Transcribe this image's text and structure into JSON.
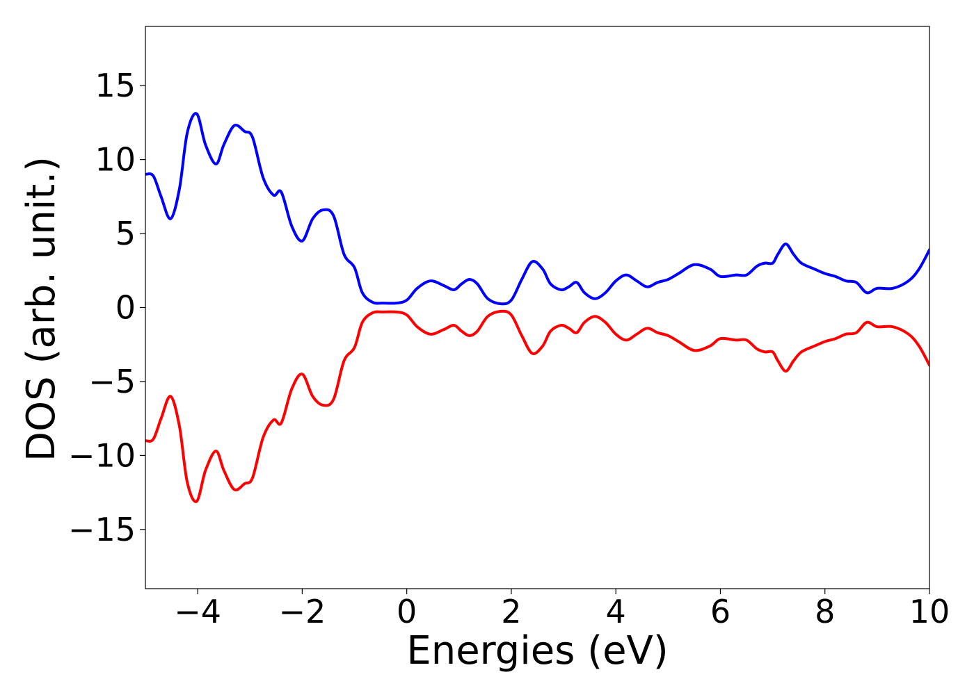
{
  "chart_data": {
    "type": "line",
    "title": "",
    "xlabel": "Energies (eV)",
    "ylabel": "DOS (arb. unit.)",
    "xlim": [
      -5,
      10
    ],
    "ylim": [
      -19,
      19
    ],
    "xticks": [
      -4,
      -2,
      0,
      2,
      4,
      6,
      8,
      10
    ],
    "xtick_labels": [
      "−4",
      "−2",
      "0",
      "2",
      "4",
      "6",
      "8",
      "10"
    ],
    "yticks": [
      -15,
      -10,
      -5,
      0,
      5,
      10,
      15
    ],
    "ytick_labels": [
      "−15",
      "−10",
      "−5",
      "0",
      "5",
      "10",
      "15"
    ],
    "grid": false,
    "legend": "none",
    "series": [
      {
        "color": "#0000ff",
        "x": [
          -5.0,
          -4.85,
          -4.7,
          -4.52,
          -4.35,
          -4.2,
          -4.02,
          -3.85,
          -3.65,
          -3.5,
          -3.3,
          -3.1,
          -2.95,
          -2.75,
          -2.55,
          -2.4,
          -2.2,
          -2.0,
          -1.8,
          -1.6,
          -1.4,
          -1.2,
          -1.0,
          -0.85,
          -0.65,
          -0.45,
          -0.2,
          0.0,
          0.2,
          0.45,
          0.7,
          0.9,
          1.05,
          1.2,
          1.35,
          1.55,
          1.8,
          2.0,
          2.2,
          2.4,
          2.6,
          2.75,
          2.95,
          3.1,
          3.25,
          3.4,
          3.6,
          3.8,
          4.0,
          4.2,
          4.4,
          4.6,
          4.8,
          5.0,
          5.2,
          5.5,
          5.8,
          6.0,
          6.3,
          6.5,
          6.7,
          6.85,
          7.0,
          7.1,
          7.25,
          7.4,
          7.55,
          7.8,
          8.0,
          8.2,
          8.4,
          8.6,
          8.8,
          9.0,
          9.3,
          9.6,
          9.8,
          10.0
        ],
        "values": [
          9.0,
          8.9,
          7.5,
          6.0,
          8.0,
          11.8,
          13.1,
          11.0,
          9.7,
          11.0,
          12.3,
          11.9,
          11.5,
          8.8,
          7.6,
          7.8,
          5.5,
          4.5,
          6.0,
          6.6,
          6.2,
          3.6,
          2.7,
          1.0,
          0.35,
          0.3,
          0.3,
          0.5,
          1.3,
          1.8,
          1.5,
          1.2,
          1.6,
          1.9,
          1.6,
          0.6,
          0.25,
          0.5,
          1.9,
          3.1,
          2.6,
          1.6,
          1.2,
          1.4,
          1.7,
          1.0,
          0.6,
          1.0,
          1.8,
          2.2,
          1.8,
          1.4,
          1.7,
          1.9,
          2.3,
          2.9,
          2.6,
          2.1,
          2.2,
          2.2,
          2.8,
          3.0,
          3.0,
          3.6,
          4.3,
          3.6,
          3.0,
          2.6,
          2.3,
          2.1,
          1.8,
          1.7,
          1.0,
          1.3,
          1.3,
          1.8,
          2.6,
          3.9
        ]
      },
      {
        "color": "#ff0000",
        "x": [
          -5.0,
          -4.85,
          -4.7,
          -4.52,
          -4.35,
          -4.2,
          -4.02,
          -3.85,
          -3.65,
          -3.5,
          -3.3,
          -3.1,
          -2.95,
          -2.75,
          -2.55,
          -2.4,
          -2.2,
          -2.0,
          -1.8,
          -1.6,
          -1.4,
          -1.2,
          -1.0,
          -0.85,
          -0.65,
          -0.45,
          -0.2,
          0.0,
          0.2,
          0.45,
          0.7,
          0.9,
          1.05,
          1.2,
          1.35,
          1.55,
          1.8,
          2.0,
          2.2,
          2.4,
          2.6,
          2.75,
          2.95,
          3.1,
          3.25,
          3.4,
          3.6,
          3.8,
          4.0,
          4.2,
          4.4,
          4.6,
          4.8,
          5.0,
          5.2,
          5.5,
          5.8,
          6.0,
          6.3,
          6.5,
          6.7,
          6.85,
          7.0,
          7.1,
          7.25,
          7.4,
          7.55,
          7.8,
          8.0,
          8.2,
          8.4,
          8.6,
          8.8,
          9.0,
          9.3,
          9.6,
          9.8,
          10.0
        ],
        "values": [
          -9.0,
          -8.9,
          -7.5,
          -6.0,
          -8.0,
          -11.8,
          -13.1,
          -11.0,
          -9.7,
          -11.0,
          -12.3,
          -11.9,
          -11.5,
          -8.8,
          -7.6,
          -7.8,
          -5.5,
          -4.5,
          -6.0,
          -6.6,
          -6.2,
          -3.6,
          -2.7,
          -1.0,
          -0.35,
          -0.3,
          -0.3,
          -0.5,
          -1.3,
          -1.8,
          -1.5,
          -1.2,
          -1.6,
          -1.9,
          -1.6,
          -0.6,
          -0.25,
          -0.5,
          -1.9,
          -3.1,
          -2.6,
          -1.6,
          -1.2,
          -1.4,
          -1.7,
          -1.0,
          -0.6,
          -1.0,
          -1.8,
          -2.2,
          -1.8,
          -1.4,
          -1.7,
          -1.9,
          -2.3,
          -2.9,
          -2.6,
          -2.1,
          -2.2,
          -2.2,
          -2.8,
          -3.0,
          -3.0,
          -3.6,
          -4.3,
          -3.6,
          -3.0,
          -2.6,
          -2.3,
          -2.1,
          -1.8,
          -1.7,
          -1.0,
          -1.3,
          -1.3,
          -1.8,
          -2.6,
          -3.9
        ]
      }
    ]
  }
}
